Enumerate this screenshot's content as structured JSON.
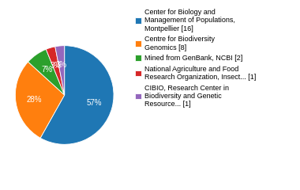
{
  "chart_data": {
    "type": "pie",
    "categories": [
      "Center for Biology and\nManagement of Populations,\nMontpellier [16]",
      "Centre for Biodiversity\nGenomics [8]",
      "Mined from GenBank, NCBI [2]",
      "National Agriculture and Food\nResearch Organization, Insect... [1]",
      "CIBIO, Research Center in\nBiodiversity and Genetic\nResource... [1]"
    ],
    "values": [
      57,
      28,
      7,
      3,
      3
    ],
    "value_labels": [
      "57%",
      "28%",
      "7%",
      "3%",
      "3%"
    ],
    "data_labels": true,
    "legend": "upper left"
  }
}
